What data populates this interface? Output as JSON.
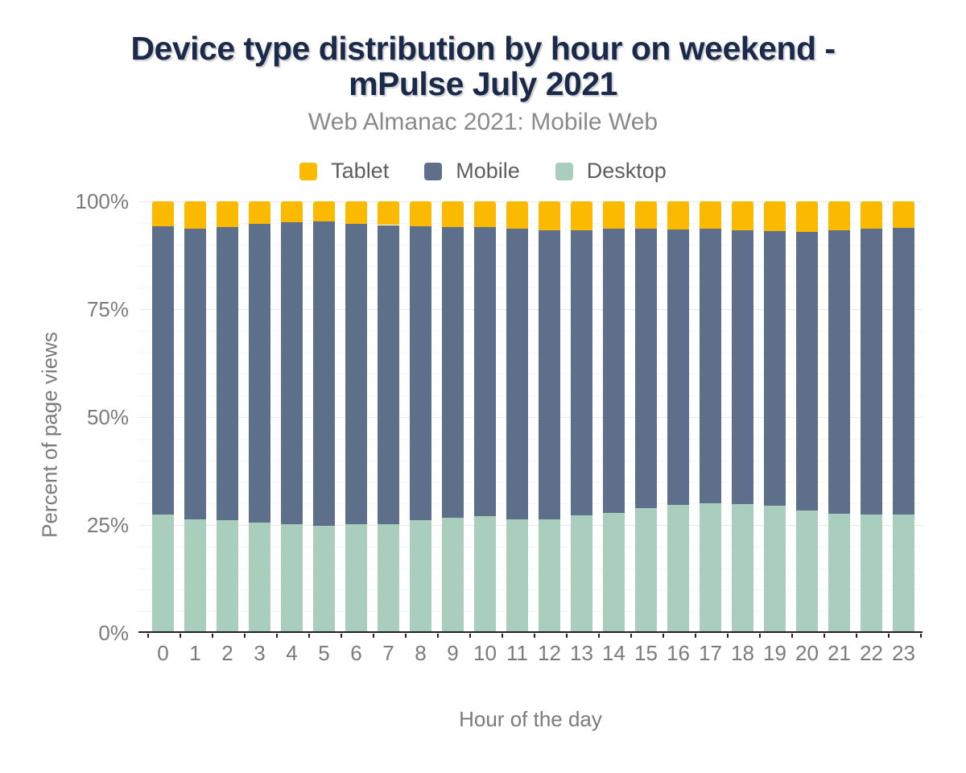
{
  "title_lines": [
    "Device type distribution by hour on weekend -",
    "mPulse July 2021"
  ],
  "colors": {
    "background": "#ffffff",
    "title": "#1b2a4a",
    "subtitle_text": "#8a8a8a",
    "tick_text": "#7b7b7b",
    "legend_text": "#5e5e5e",
    "axis_line": "#212121",
    "gridline_major": "#eaeaea",
    "gridline_minor": "#f6f6f6",
    "tablet": "#fbba00",
    "mobile": "#5e6f8c",
    "desktop": "#a9cebd"
  },
  "chart_data": {
    "type": "bar",
    "stacked": true,
    "title": "Device type distribution by hour on weekend - mPulse July 2021",
    "subtitle": "Web Almanac 2021: Mobile Web",
    "xlabel": "Hour of the day",
    "ylabel": "Percent of page views",
    "ylim": [
      0,
      100
    ],
    "yticks": [
      0,
      25,
      50,
      75,
      100
    ],
    "ytick_labels": [
      "0%",
      "25%",
      "50%",
      "75%",
      "100%"
    ],
    "grid": {
      "minor_step_percent": 5,
      "major_step_percent": 25
    },
    "legend_position": "top",
    "categories": [
      "0",
      "1",
      "2",
      "3",
      "4",
      "5",
      "6",
      "7",
      "8",
      "9",
      "10",
      "11",
      "12",
      "13",
      "14",
      "15",
      "16",
      "17",
      "18",
      "19",
      "20",
      "21",
      "22",
      "23"
    ],
    "series": [
      {
        "name": "Tablet",
        "color": "#fbba00",
        "values": [
          5.8,
          6.4,
          5.9,
          5.2,
          4.9,
          4.7,
          5.2,
          5.5,
          5.8,
          5.9,
          6.0,
          6.4,
          6.7,
          6.7,
          6.4,
          6.4,
          6.5,
          6.4,
          6.7,
          6.9,
          7.0,
          6.7,
          6.3,
          6.2
        ]
      },
      {
        "name": "Mobile",
        "color": "#5e6f8c",
        "values": [
          66.7,
          67.2,
          68.0,
          69.3,
          69.9,
          70.4,
          69.7,
          69.3,
          68.1,
          67.4,
          67.0,
          67.3,
          66.9,
          66.1,
          65.8,
          64.7,
          63.9,
          63.6,
          63.5,
          63.7,
          64.6,
          65.6,
          66.3,
          66.4
        ]
      },
      {
        "name": "Desktop",
        "color": "#a9cebd",
        "values": [
          27.5,
          26.4,
          26.1,
          25.5,
          25.2,
          24.9,
          25.1,
          25.2,
          26.1,
          26.7,
          27.0,
          26.3,
          26.4,
          27.2,
          27.8,
          28.9,
          29.6,
          30.0,
          29.8,
          29.4,
          28.4,
          27.7,
          27.4,
          27.4
        ]
      }
    ],
    "stack_bottom_to_top": [
      "Desktop",
      "Mobile",
      "Tablet"
    ]
  }
}
